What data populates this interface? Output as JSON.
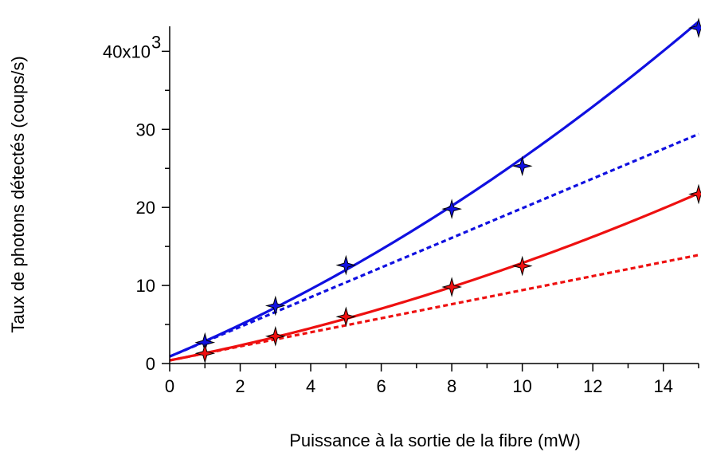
{
  "chart_data": {
    "type": "scatter",
    "title": "",
    "xlabel": "Puissance à la sortie de la fibre (mW)",
    "ylabel": "Taux de photons détectés (coups/s)",
    "xlim": [
      0,
      15
    ],
    "ylim": [
      0,
      43000
    ],
    "x_ticks": [
      {
        "value": 0,
        "label": "0"
      },
      {
        "value": 2,
        "label": "2"
      },
      {
        "value": 4,
        "label": "4"
      },
      {
        "value": 6,
        "label": "6"
      },
      {
        "value": 8,
        "label": "8"
      },
      {
        "value": 10,
        "label": "10"
      },
      {
        "value": 12,
        "label": "12"
      },
      {
        "value": 14,
        "label": "14"
      }
    ],
    "y_ticks": [
      {
        "value": 0,
        "label": "0"
      },
      {
        "value": 10000,
        "label": "10"
      },
      {
        "value": 20000,
        "label": "20"
      },
      {
        "value": 30000,
        "label": "30"
      },
      {
        "value": 40000,
        "label": "40x10",
        "exp": "3"
      }
    ],
    "grid": false,
    "series": [
      {
        "color": "#1010e0",
        "marker": "four-point-star",
        "points": [
          [
            1,
            2700
          ],
          [
            3,
            7400
          ],
          [
            5,
            12600
          ],
          [
            8,
            19800
          ],
          [
            10,
            25300
          ],
          [
            15,
            43000
          ]
        ],
        "fit_quadratic": [
          900,
          1900,
          64
        ],
        "fit_linear": [
          900,
          1900
        ]
      },
      {
        "color": "#ee1010",
        "marker": "four-point-star",
        "points": [
          [
            1,
            1300
          ],
          [
            3,
            3500
          ],
          [
            5,
            6000
          ],
          [
            8,
            9800
          ],
          [
            10,
            12500
          ],
          [
            15,
            21700
          ]
        ],
        "fit_quadratic": [
          400,
          890,
          35.8
        ],
        "fit_linear": [
          400,
          900
        ]
      }
    ]
  }
}
